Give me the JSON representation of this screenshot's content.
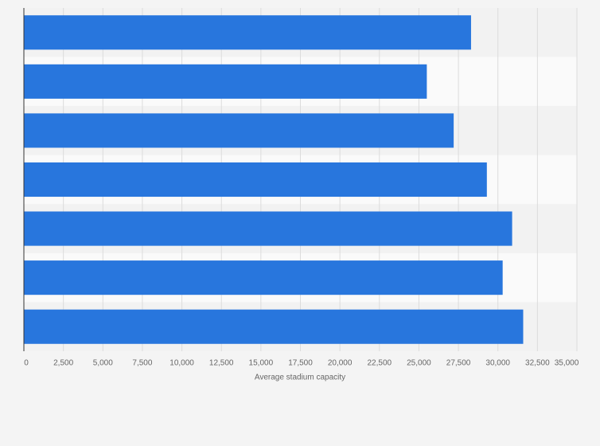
{
  "chart_data": {
    "type": "bar",
    "orientation": "horizontal",
    "x_label": "Average stadium capacity",
    "categories": [
      null,
      null,
      null,
      null,
      null,
      null,
      null
    ],
    "values": [
      28300,
      25500,
      27200,
      29300,
      30900,
      30300,
      31600
    ],
    "color": "#2876dd",
    "xlim": [
      0,
      35000
    ],
    "xticks": [
      0,
      {
        "value": 2500,
        "label": "2,500"
      },
      {
        "value": 5000,
        "label": "5,000"
      },
      {
        "value": 7500,
        "label": "7,500"
      },
      {
        "value": 10000,
        "label": "10,000"
      },
      {
        "value": 12500,
        "label": "12,500"
      },
      {
        "value": 15000,
        "label": "15,000"
      },
      {
        "value": 17500,
        "label": "17,500"
      },
      {
        "value": 20000,
        "label": "20,000"
      },
      {
        "value": 22500,
        "label": "22,500"
      },
      {
        "value": 25000,
        "label": "25,000"
      },
      {
        "value": 27500,
        "label": "27,500"
      },
      {
        "value": 30000,
        "label": "30,000"
      },
      {
        "value": 32500,
        "label": "32,500"
      },
      {
        "value": 35000,
        "label": "35,000"
      }
    ],
    "grid": true
  }
}
